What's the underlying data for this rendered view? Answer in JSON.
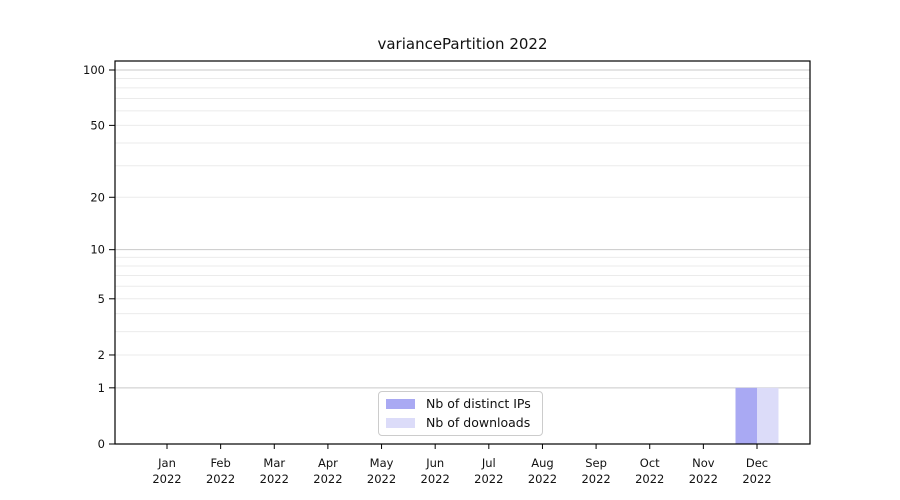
{
  "chart_data": {
    "type": "bar",
    "title": "variancePartition 2022",
    "x": {
      "months": [
        "Jan",
        "Feb",
        "Mar",
        "Apr",
        "May",
        "Jun",
        "Jul",
        "Aug",
        "Sep",
        "Oct",
        "Nov",
        "Dec"
      ],
      "year": "2022"
    },
    "series": [
      {
        "name": "Nb of distinct IPs",
        "color": "#a9a9f3",
        "values": [
          0,
          0,
          0,
          0,
          0,
          0,
          0,
          0,
          0,
          0,
          0,
          1
        ]
      },
      {
        "name": "Nb of downloads",
        "color": "#dcdcf9",
        "values": [
          0,
          0,
          0,
          0,
          0,
          0,
          0,
          0,
          0,
          0,
          0,
          1
        ]
      }
    ],
    "yscale": "log1p",
    "ylim": [
      0,
      100
    ],
    "yticks": [
      0,
      1,
      2,
      5,
      10,
      20,
      50,
      100
    ],
    "major_gridlines": [
      1,
      10,
      100
    ],
    "minor_gridlines": [
      2,
      3,
      4,
      5,
      6,
      7,
      8,
      9,
      20,
      30,
      40,
      50,
      60,
      70,
      80,
      90
    ],
    "grid": true,
    "legend": {
      "position": "bottom-center",
      "items": [
        "Nb of distinct IPs",
        "Nb of downloads"
      ]
    },
    "colors": {
      "major_grid": "#c9c9c9",
      "minor_grid": "#ebebeb",
      "spine": "#000000",
      "text": "#111111"
    }
  }
}
